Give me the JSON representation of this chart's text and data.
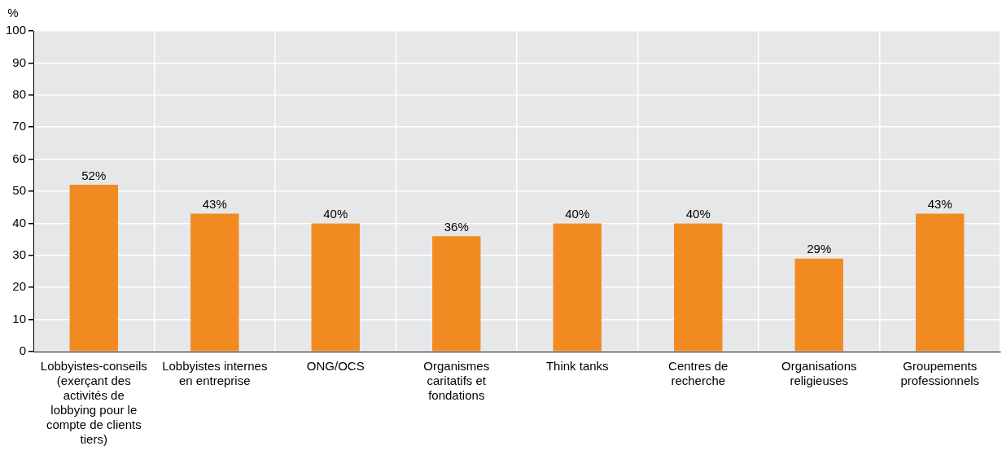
{
  "chart_data": {
    "type": "bar",
    "ylabel": "%",
    "categories": [
      "Lobbyistes-conseils (exerçant des activités de lobbying pour le compte de clients tiers)",
      "Lobbyistes internes en entreprise",
      "ONG/OCS",
      "Organismes caritatifs et fondations",
      "Think tanks",
      "Centres de recherche",
      "Organisations religieuses",
      "Groupements professionnels"
    ],
    "values": [
      52,
      43,
      40,
      36,
      40,
      40,
      29,
      43
    ],
    "value_labels": [
      "52%",
      "43%",
      "40%",
      "36%",
      "40%",
      "40%",
      "29%",
      "43%"
    ],
    "color": "#f28a22",
    "ylim": [
      0,
      100
    ],
    "yticks": [
      0,
      10,
      20,
      30,
      40,
      50,
      60,
      70,
      80,
      90,
      100
    ],
    "grid": true,
    "legend": false
  }
}
